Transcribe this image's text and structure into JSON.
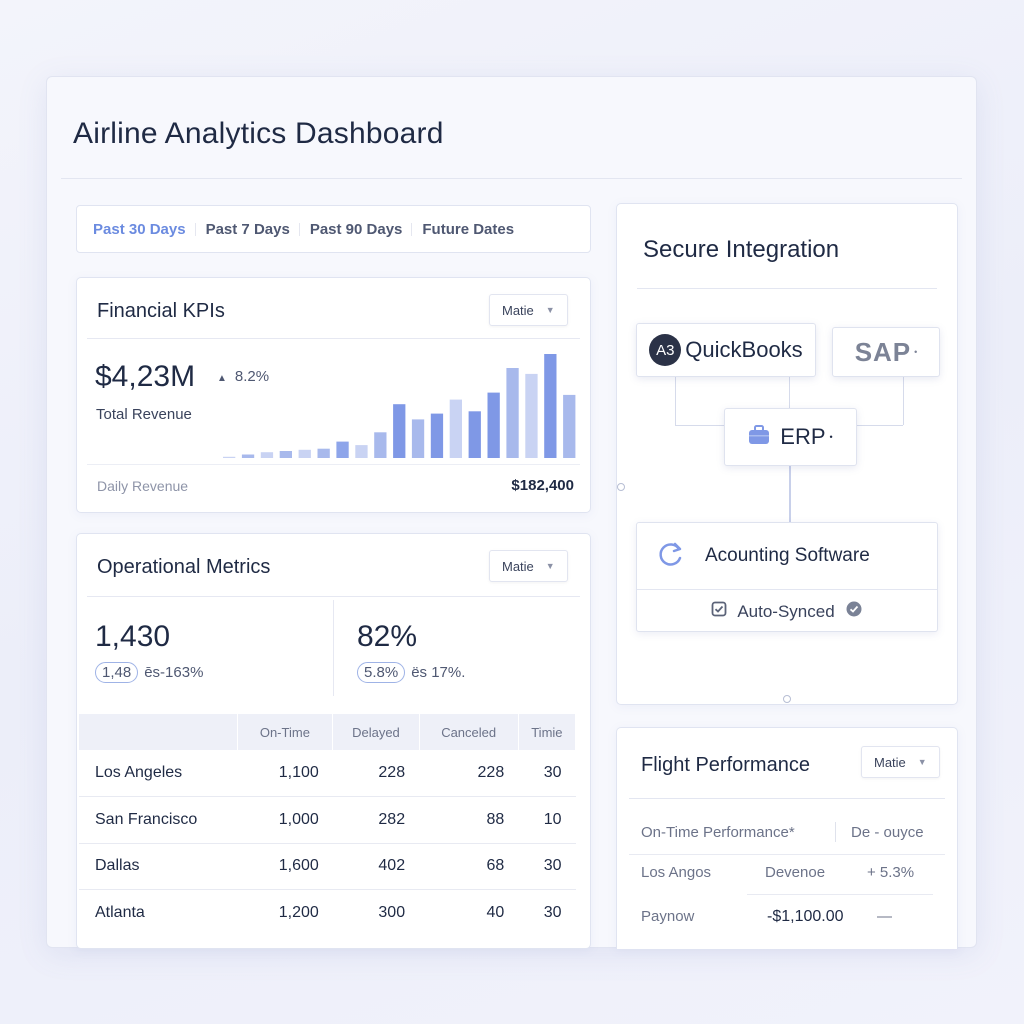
{
  "app": {
    "title": "Airline Analytics Dashboard"
  },
  "tabs": [
    {
      "label": "Past 30 Days",
      "active": true
    },
    {
      "label": "Past 7 Days",
      "active": false
    },
    {
      "label": "Past 90 Days",
      "active": false
    },
    {
      "label": "Future Dates",
      "active": false
    }
  ],
  "financial": {
    "title": "Financial KPIs",
    "dropdown": "Matie",
    "value": "$4,23M",
    "delta": "8.2%",
    "value_label": "Total Revenue",
    "footer_label": "Daily Revenue",
    "footer_value": "$182,400",
    "chart_data": {
      "type": "bar",
      "values": [
        1,
        3,
        5,
        6,
        7,
        8,
        14,
        11,
        22,
        46,
        33,
        38,
        50,
        40,
        56,
        77,
        72,
        89,
        54
      ],
      "colors": [
        "#c9d3f3",
        "#a8b9ec",
        "#c9d3f3",
        "#a8b9ec",
        "#c9d3f3",
        "#a8b9ec",
        "#8ea5ea",
        "#c9d3f3",
        "#a8b9ec",
        "#7f98e6",
        "#a8b9ec",
        "#7f98e6",
        "#c9d3f3",
        "#7f98e6",
        "#7f98e6",
        "#a8b9ec",
        "#c9d3f3",
        "#7f98e6",
        "#a8b9ec"
      ]
    }
  },
  "operational": {
    "title": "Operational Metrics",
    "dropdown": "Matie",
    "metric1": {
      "value": "1,430",
      "pill": "1,48",
      "text": "ēs-163%"
    },
    "metric2": {
      "value": "82%",
      "pill": "5.8%",
      "text": "ës 17%."
    },
    "columns": [
      "On-Time",
      "Delayed",
      "Canceled",
      "Timie"
    ],
    "rows": [
      {
        "city": "Los Angeles",
        "cells": [
          "1,100",
          "228",
          "228",
          "30"
        ]
      },
      {
        "city": "San Francisco",
        "cells": [
          "1,000",
          "282",
          "88",
          "10"
        ]
      },
      {
        "city": "Dallas",
        "cells": [
          "1,600",
          "402",
          "68",
          "30"
        ]
      },
      {
        "city": "Atlanta",
        "cells": [
          "1,200",
          "300",
          "40",
          "30"
        ]
      }
    ]
  },
  "integration": {
    "title": "Secure Integration",
    "quickbooks_badge": "A3",
    "quickbooks": "QuickBooks",
    "sap": "SAP",
    "sap_mark": "•",
    "erp": "ERP",
    "erp_mark": "•",
    "accounting": "Acounting Software",
    "synced": "Auto-Synced"
  },
  "flight": {
    "title": "Flight Performance",
    "dropdown": "Matie",
    "header": [
      "On-Time Performance*",
      "De - ouyce"
    ],
    "row1": [
      "Los Angos",
      "Devenoe",
      "+ 5.3%"
    ],
    "row2": [
      "Paynow",
      "-$1,100.00",
      "—"
    ]
  },
  "colors": {
    "accent": "#6b8be0",
    "text": "#1f2a44",
    "muted": "#8e94a8"
  }
}
